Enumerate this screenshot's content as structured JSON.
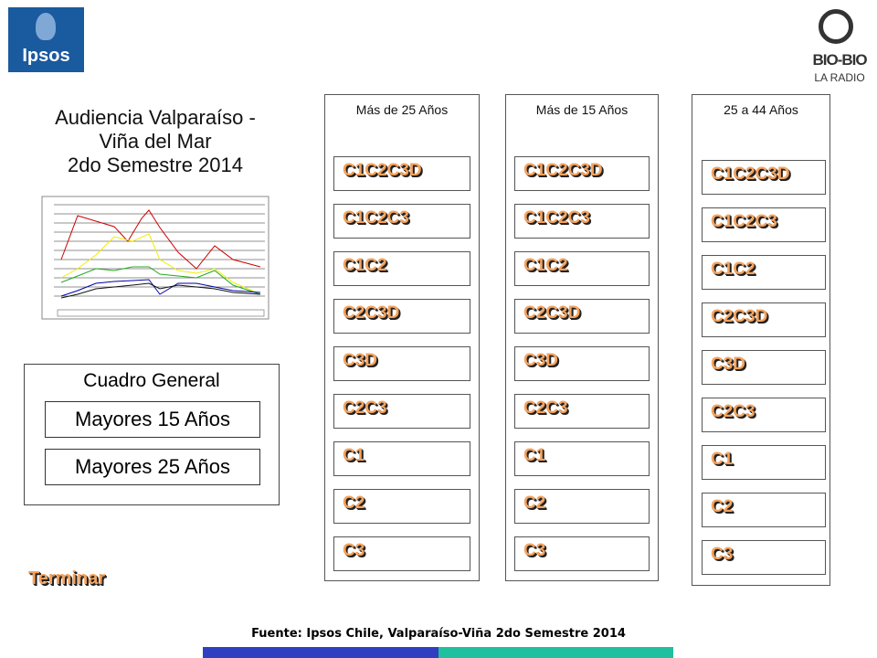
{
  "logos": {
    "left": "Ipsos",
    "right_top": "BIO-BIO",
    "right_bottom": "LA RADIO"
  },
  "title": [
    "Audiencia Valparaíso -",
    "Viña del Mar",
    "2do Semestre 2014"
  ],
  "general": {
    "title": "Cuadro General",
    "buttons": [
      "Mayores 15 Años",
      "Mayores 25 Años"
    ]
  },
  "columns": [
    {
      "header": "Más de 25 Años",
      "items": [
        "C1C2C3D",
        "C1C2C3",
        "C1C2",
        "C2C3D",
        "C3D",
        "C2C3",
        "C1",
        "C2",
        "C3"
      ]
    },
    {
      "header": "Más de 15 Años",
      "items": [
        "C1C2C3D",
        "C1C2C3",
        "C1C2",
        "C2C3D",
        "C3D",
        "C2C3",
        "C1",
        "C2",
        "C3"
      ]
    },
    {
      "header": "25 a 44 Años",
      "items": [
        "C1C2C3D",
        "C1C2C3",
        "C1C2",
        "C2C3D",
        "C3D",
        "C2C3",
        "C1",
        "C2",
        "C3"
      ]
    }
  ],
  "exit": "Terminar",
  "footer": "Fuente: Ipsos Chile, Valparaíso-Viña 2do Semestre 2014"
}
